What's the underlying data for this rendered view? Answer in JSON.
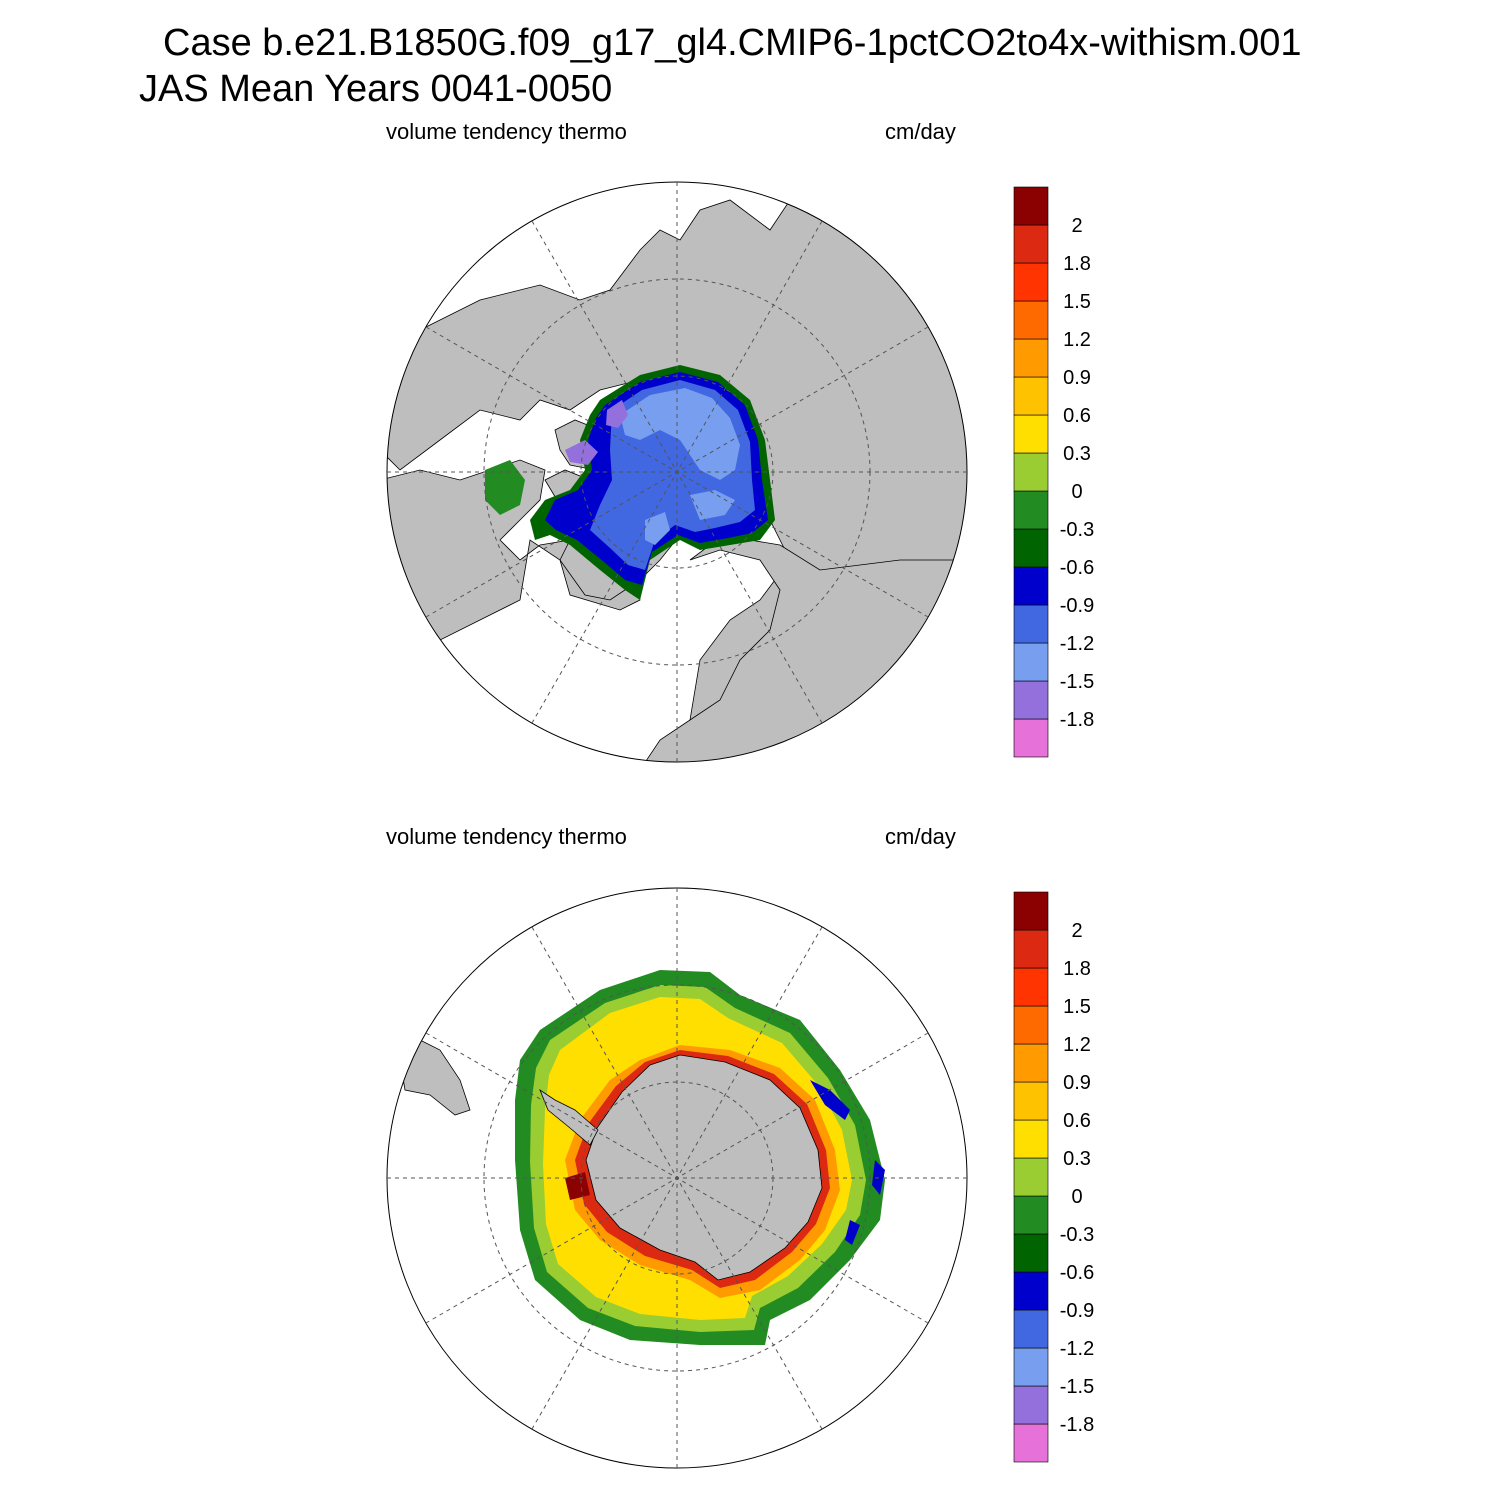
{
  "header": {
    "title_line1": "Case b.e21.B1850G.f09_g17_gl4.CMIP6-1pctCO2to4x-withism.001",
    "title_line2": "JAS Mean   Years 0041-0050"
  },
  "colors": {
    "land": "#bebebe",
    "open_water": "#ffffff",
    "levels": [
      "#e671d9",
      "#9370db",
      "#789ef0",
      "#4167e1",
      "#0000cd",
      "#006400",
      "#228b22",
      "#9acd32",
      "#ffdf00",
      "#ffc200",
      "#ff9b00",
      "#ff6a00",
      "#ff3400",
      "#dc2a12",
      "#8b0000"
    ]
  },
  "colorbar": {
    "tick_labels": [
      "-1.8",
      "-1.5",
      "-1.2",
      "-0.9",
      "-0.6",
      "-0.3",
      "0",
      "0.3",
      "0.6",
      "0.9",
      "1.2",
      "1.5",
      "1.8",
      "2"
    ]
  },
  "panels": [
    {
      "id": "north",
      "hemisphere": "north",
      "variable_label": "volume tendency thermo",
      "units_label": "cm/day"
    },
    {
      "id": "south",
      "hemisphere": "south",
      "variable_label": "volume tendency thermo",
      "units_label": "cm/day"
    }
  ]
}
